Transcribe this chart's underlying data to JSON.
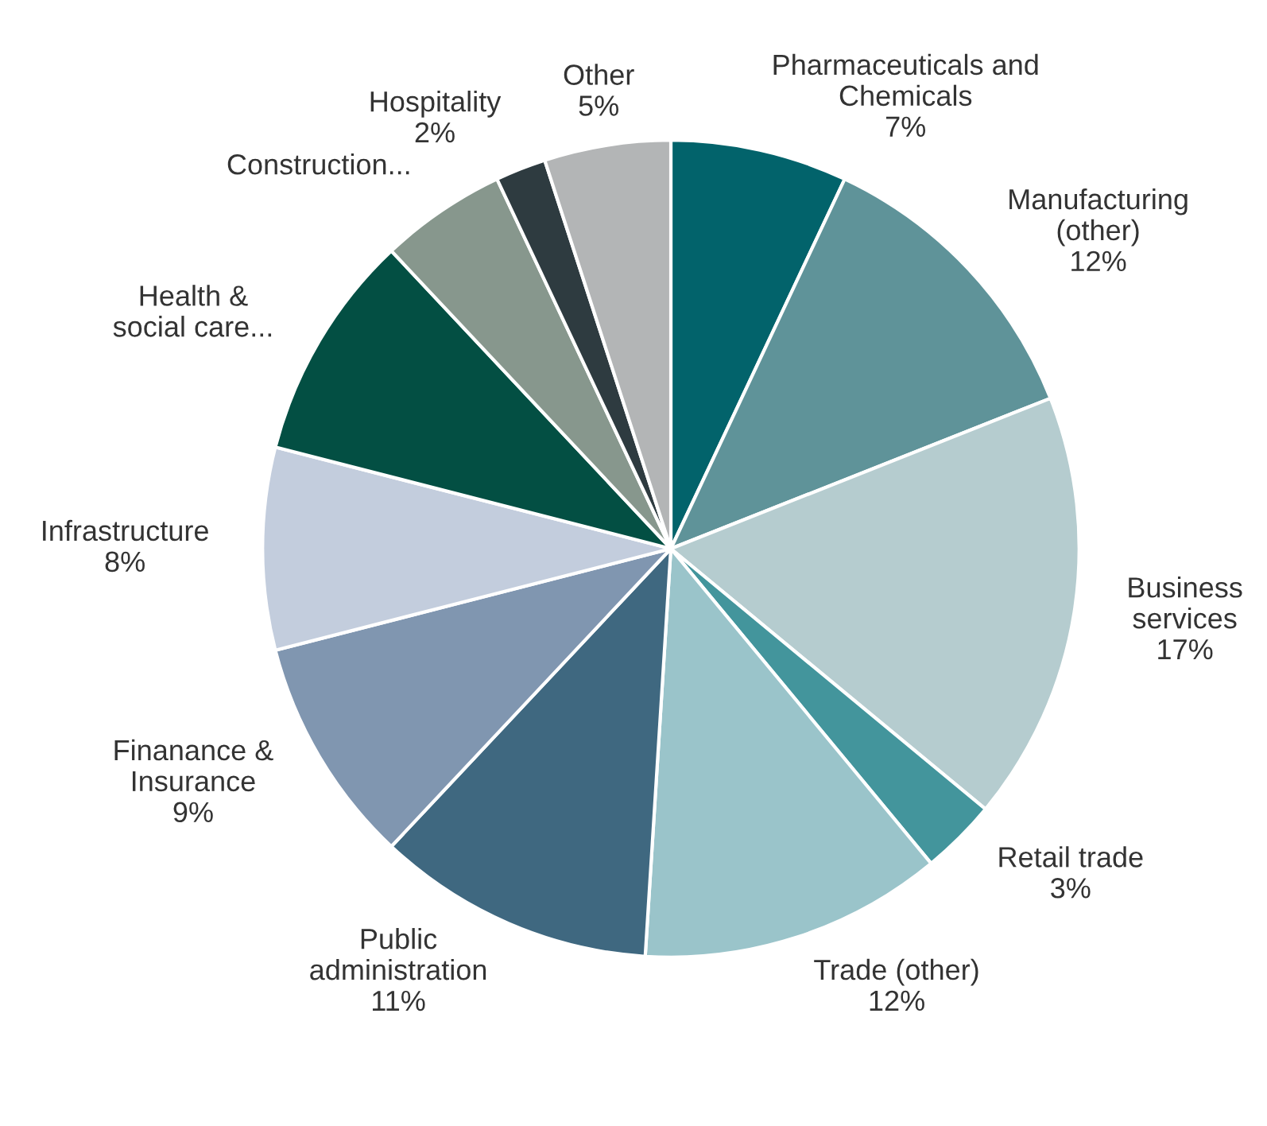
{
  "chart_data": {
    "type": "pie",
    "categories": [
      "Pharmaceuticals and\nChemicals",
      "Manufacturing\n(other)",
      "Business\nservices",
      "Retail trade",
      "Trade (other)",
      "Public\nadministration",
      "Finanance &\nInsurance",
      "Infrastructure",
      "Health &\nsocial care...",
      "Construction...",
      "Hospitality",
      "Other"
    ],
    "values": [
      7,
      12,
      17,
      3,
      12,
      11,
      9,
      8,
      9,
      5,
      2,
      5
    ],
    "value_labels": [
      "7%",
      "12%",
      "17%",
      "3%",
      "12%",
      "11%",
      "9%",
      "8%",
      null,
      null,
      "2%",
      "5%"
    ],
    "colors": [
      "#02636b",
      "#5f9399",
      "#b5cccf",
      "#43959c",
      "#9ac4ca",
      "#3f6880",
      "#8096b0",
      "#c3cddd",
      "#034f43",
      "#87978d",
      "#2e3b40",
      "#b3b5b6"
    ]
  }
}
